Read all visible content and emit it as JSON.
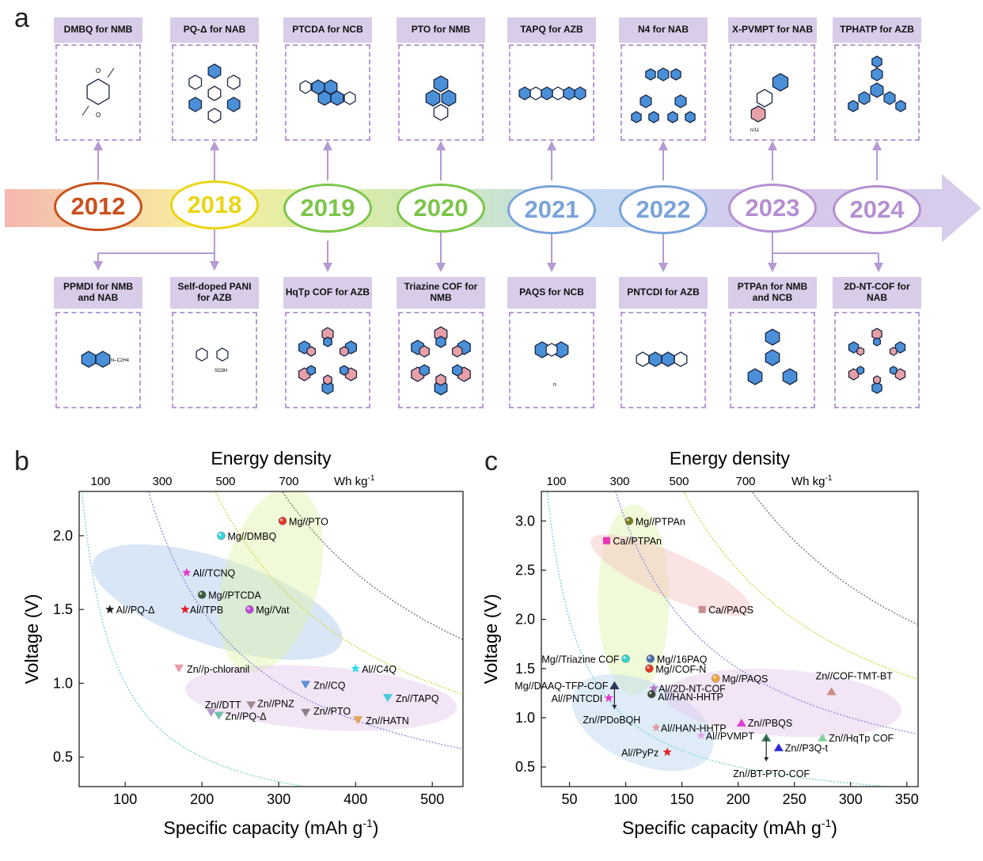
{
  "panels": {
    "a": "a",
    "b": "b",
    "c": "c"
  },
  "timeline": {
    "years": [
      {
        "label": "2012",
        "color": "#c8511c"
      },
      {
        "label": "2018",
        "color": "#e9d514"
      },
      {
        "label": "2019",
        "color": "#7cc54a"
      },
      {
        "label": "2020",
        "color": "#7cc54a"
      },
      {
        "label": "2021",
        "color": "#7aa3d9"
      },
      {
        "label": "2022",
        "color": "#7aa3d9"
      },
      {
        "label": "2023",
        "color": "#b58fd1"
      },
      {
        "label": "2024",
        "color": "#b58fd1"
      }
    ],
    "top_labels": [
      "DMBQ for NMB",
      "PQ-Δ for NAB",
      "PTCDA for NCB",
      "PTO for NMB",
      "TAPQ for AZB",
      "N4 for NAB",
      "X-PVMPT for NAB",
      "TPHATP for AZB"
    ],
    "bottom_labels": [
      "PPMDI for NMB and NAB",
      "Self-doped PANI for AZB",
      "HqTp COF for AZB",
      "Triazine COF for NMB",
      "PAQS for NCB",
      "PNTCDI for AZB",
      "PTPAn for NMB and NCB",
      "2D-NT-COF for NAB"
    ],
    "structure_text": {
      "ppmdi": "N–C2H4",
      "pani": "SO3H",
      "xpvmpt": "n/11",
      "n": "n"
    }
  },
  "chart_data": [
    {
      "type": "scatter",
      "panel": "b",
      "title": "Energy density",
      "top_axis_labels": [
        "100",
        "300",
        "500",
        "700"
      ],
      "top_axis_unit": "Wh kg-1",
      "xlabel": "Specific capacity (mAh g-1)",
      "ylabel": "Voltage (V)",
      "xlim": [
        40,
        540
      ],
      "ylim": [
        0.3,
        2.3
      ],
      "xticks": [
        100,
        200,
        300,
        400,
        500
      ],
      "yticks": [
        0.5,
        1.0,
        1.5,
        2.0
      ],
      "iso_energy_curves": [
        100,
        300,
        500,
        700
      ],
      "points": [
        {
          "label": "Mg//PTO",
          "x": 305,
          "y": 2.1,
          "marker": "sphere",
          "color": "#e53b2a"
        },
        {
          "label": "Mg//DMBQ",
          "x": 225,
          "y": 2.0,
          "marker": "sphere",
          "color": "#34d5e0"
        },
        {
          "label": "Al//TCNQ",
          "x": 180,
          "y": 1.75,
          "marker": "star",
          "color": "#e436c8"
        },
        {
          "label": "Mg//PTCDA",
          "x": 200,
          "y": 1.6,
          "marker": "sphere",
          "color": "#3b5a3a"
        },
        {
          "label": "Al//PQ-Δ",
          "x": 80,
          "y": 1.5,
          "marker": "star",
          "color": "#222222"
        },
        {
          "label": "Al//TPB",
          "x": 178,
          "y": 1.5,
          "marker": "star",
          "color": "#e01f2a"
        },
        {
          "label": "Mg//Vat",
          "x": 262,
          "y": 1.5,
          "marker": "sphere",
          "color": "#c244e0"
        },
        {
          "label": "Zn//p-chloranil",
          "x": 170,
          "y": 1.1,
          "marker": "tri-down",
          "color": "#e89aa4"
        },
        {
          "label": "Al//C4Q",
          "x": 400,
          "y": 1.1,
          "marker": "star",
          "color": "#35d8f0"
        },
        {
          "label": "Zn//CQ",
          "x": 335,
          "y": 0.99,
          "marker": "tri-down",
          "color": "#5b8fd6"
        },
        {
          "label": "Zn//TAPQ",
          "x": 442,
          "y": 0.9,
          "marker": "tri-down",
          "color": "#46cce0"
        },
        {
          "label": "Zn//DTT",
          "x": 212,
          "y": 0.8,
          "marker": "tri-down",
          "color": "#b49ac8"
        },
        {
          "label": "Zn//PNZ",
          "x": 264,
          "y": 0.85,
          "marker": "tri-down",
          "color": "#a58888"
        },
        {
          "label": "Zn//PQ-Δ",
          "x": 222,
          "y": 0.78,
          "marker": "tri-down",
          "color": "#6fbfa8"
        },
        {
          "label": "Zn//PTO",
          "x": 335,
          "y": 0.8,
          "marker": "tri-down",
          "color": "#8a7c88"
        },
        {
          "label": "Zn//HATN",
          "x": 403,
          "y": 0.75,
          "marker": "tri-down",
          "color": "#e0a55a"
        }
      ]
    },
    {
      "type": "scatter",
      "panel": "c",
      "title": "Energy density",
      "top_axis_labels": [
        "100",
        "300",
        "500",
        "700"
      ],
      "top_axis_unit": "Wh kg-1",
      "xlabel": "Specific capacity (mAh g-1)",
      "ylabel": "Voltage (V)",
      "xlim": [
        25,
        360
      ],
      "ylim": [
        0.3,
        3.3
      ],
      "xticks": [
        50,
        100,
        150,
        200,
        250,
        300,
        350
      ],
      "yticks": [
        0.5,
        1.0,
        1.5,
        2.0,
        2.5,
        3.0
      ],
      "iso_energy_curves": [
        100,
        300,
        500,
        700
      ],
      "points": [
        {
          "label": "Mg//PTPAn",
          "x": 103,
          "y": 3.0,
          "marker": "sphere",
          "color": "#7a7a22"
        },
        {
          "label": "Ca//PTPAn",
          "x": 83,
          "y": 2.8,
          "marker": "square",
          "color": "#e636b4"
        },
        {
          "label": "Ca//PAQS",
          "x": 168,
          "y": 2.1,
          "marker": "square",
          "color": "#c98f8f"
        },
        {
          "label": "Mg//Triazine COF",
          "x": 100,
          "y": 1.6,
          "marker": "sphere",
          "color": "#32d4cf"
        },
        {
          "label": "Mg//16PAQ",
          "x": 122,
          "y": 1.6,
          "marker": "sphere",
          "color": "#4a6fa8"
        },
        {
          "label": "Mg//COF-N",
          "x": 121,
          "y": 1.5,
          "marker": "sphere",
          "color": "#e23a2a"
        },
        {
          "label": "Mg//PAQS",
          "x": 180,
          "y": 1.4,
          "marker": "sphere",
          "color": "#f0a640"
        },
        {
          "label": "Zn//COF-TMT-BT",
          "x": 283,
          "y": 1.27,
          "marker": "tri-up",
          "color": "#c98a8a"
        },
        {
          "label": "Mg//DAAQ-TFP-COF",
          "x": 90,
          "y": 1.33,
          "marker": "tri-up",
          "color": "#2e3a5c"
        },
        {
          "label": "Al//2D-NT-COF",
          "x": 125,
          "y": 1.3,
          "marker": "star",
          "color": "#b07ac8"
        },
        {
          "label": "Al//HAN-HHTP",
          "x": 123,
          "y": 1.24,
          "marker": "sphere",
          "color": "#3a4a3a"
        },
        {
          "label": "Al//PNTCDI",
          "x": 85,
          "y": 1.2,
          "marker": "star",
          "color": "#e63acb"
        },
        {
          "label": "Zn//PDoBQH",
          "x": 90,
          "y": 1.33,
          "marker": "tri-up",
          "color": "#2e3a5c"
        },
        {
          "label": "Zn//PBQS",
          "x": 203,
          "y": 0.95,
          "marker": "tri-up",
          "color": "#e23ad4"
        },
        {
          "label": "Al//HAN-HHTP",
          "x": 127,
          "y": 0.9,
          "marker": "star",
          "color": "#e09aa8"
        },
        {
          "label": "Al//PVMPT",
          "x": 167,
          "y": 0.82,
          "marker": "star",
          "color": "#e0a8e8"
        },
        {
          "label": "Zn//HqTp COF",
          "x": 275,
          "y": 0.8,
          "marker": "tri-up",
          "color": "#86d09e"
        },
        {
          "label": "Zn//BT-PTO-COF",
          "x": 225,
          "y": 0.8,
          "marker": "tri-up",
          "color": "#3a7a5a"
        },
        {
          "label": "Zn//P3Q-t",
          "x": 236,
          "y": 0.7,
          "marker": "tri-up",
          "color": "#2d2ae0"
        },
        {
          "label": "Al//PyPz",
          "x": 137,
          "y": 0.65,
          "marker": "star",
          "color": "#e6252a"
        }
      ]
    }
  ]
}
